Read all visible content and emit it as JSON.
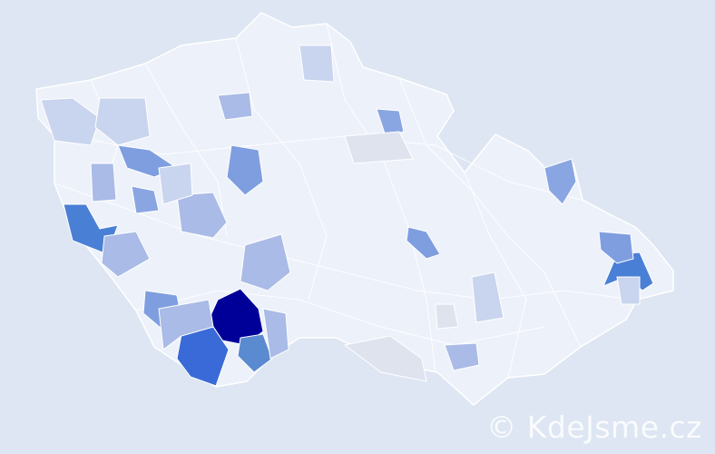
{
  "map": {
    "background_color": "#dde6f2",
    "base_fill": "#edf1fa",
    "border_color": "#ffffff",
    "highlighted_districts": [
      {
        "fill": "#000099",
        "level": "highest"
      },
      {
        "fill": "#3a6ad8",
        "level": "high"
      },
      {
        "fill": "#4a7fd6",
        "level": "high"
      },
      {
        "fill": "#5a8ad0",
        "level": "high"
      },
      {
        "fill": "#7f9ee0",
        "level": "medium"
      },
      {
        "fill": "#a9bbe6",
        "level": "low"
      },
      {
        "fill": "#c9d4ee",
        "level": "lowest"
      }
    ]
  },
  "watermark": "© KdeJsme.cz"
}
